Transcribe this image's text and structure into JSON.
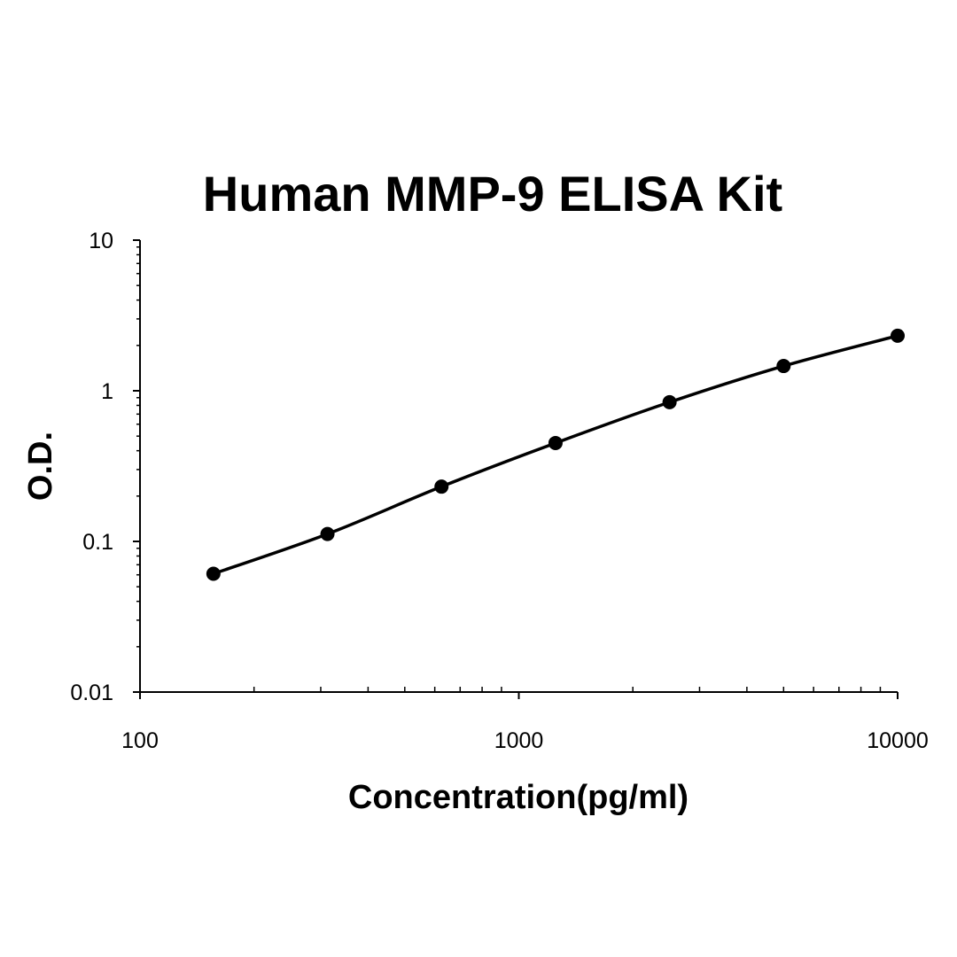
{
  "chart_data": {
    "type": "line",
    "title": "Human MMP-9 ELISA Kit",
    "xlabel": "Concentration(pg/ml)",
    "ylabel": "O.D.",
    "xscale": "log",
    "yscale": "log",
    "xlim": [
      100,
      10000
    ],
    "ylim": [
      0.01,
      10
    ],
    "x_ticks": [
      {
        "value": 100,
        "label": "100"
      },
      {
        "value": 1000,
        "label": "1000"
      },
      {
        "value": 10000,
        "label": "10000"
      }
    ],
    "y_ticks": [
      {
        "value": 0.01,
        "label": "0.01"
      },
      {
        "value": 0.1,
        "label": "0.1"
      },
      {
        "value": 1,
        "label": "1"
      },
      {
        "value": 10,
        "label": "10"
      }
    ],
    "grid": false,
    "legend": "none",
    "line_color": "#000000",
    "marker": "circle",
    "series": [
      {
        "x": [
          156.25,
          312.5,
          625,
          1250,
          2500,
          5000,
          10000
        ],
        "y": [
          0.061,
          0.112,
          0.231,
          0.45,
          0.84,
          1.46,
          2.32
        ]
      }
    ]
  }
}
